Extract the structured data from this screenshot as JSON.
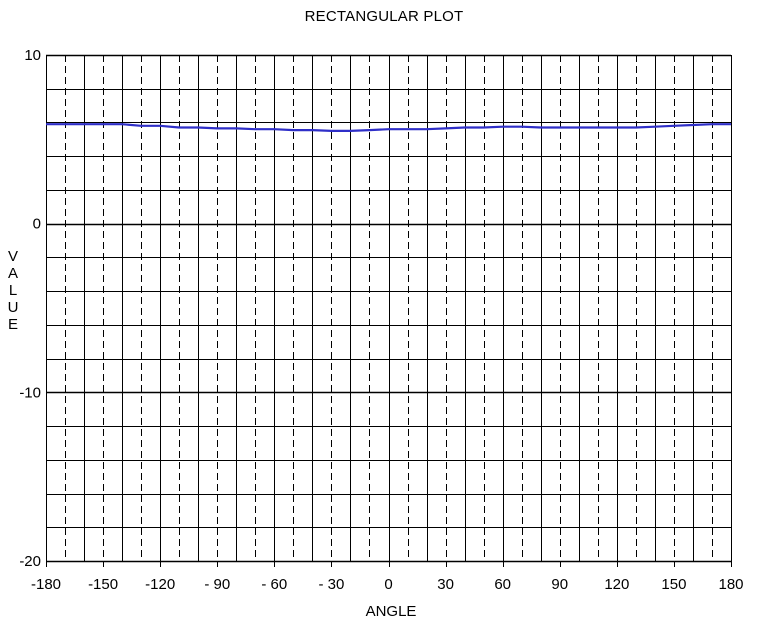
{
  "chart_data": {
    "type": "line",
    "title": "RECTANGULAR PLOT",
    "xlabel": "ANGLE",
    "ylabel": "VALUE",
    "xlim": [
      -180,
      180
    ],
    "ylim": [
      -20,
      10
    ],
    "x_ticks": [
      -180,
      -150,
      -120,
      -90,
      -60,
      -30,
      0,
      30,
      60,
      90,
      120,
      150,
      180
    ],
    "x_tick_labels": [
      "-180",
      "-150",
      "-120",
      "- 90",
      "- 60",
      "- 30",
      "0",
      "30",
      "60",
      "90",
      "120",
      "150",
      "180"
    ],
    "y_ticks": [
      10,
      0,
      -10,
      -20
    ],
    "y_tick_labels": [
      "10",
      "0",
      "-10",
      "-20"
    ],
    "x_minor_step": 10,
    "y_minor_step": 2,
    "grid": true,
    "series": [
      {
        "color": "#2f2fc8",
        "x": [
          -180,
          -170,
          -160,
          -150,
          -140,
          -130,
          -120,
          -110,
          -100,
          -90,
          -80,
          -70,
          -60,
          -50,
          -40,
          -30,
          -20,
          -10,
          0,
          10,
          20,
          30,
          40,
          50,
          60,
          70,
          80,
          90,
          100,
          110,
          120,
          130,
          140,
          150,
          160,
          170,
          180
        ],
        "values": [
          5.9,
          5.9,
          5.9,
          5.9,
          5.9,
          5.8,
          5.8,
          5.7,
          5.7,
          5.65,
          5.65,
          5.6,
          5.6,
          5.55,
          5.55,
          5.5,
          5.5,
          5.55,
          5.6,
          5.6,
          5.6,
          5.65,
          5.7,
          5.7,
          5.75,
          5.75,
          5.7,
          5.7,
          5.7,
          5.7,
          5.7,
          5.7,
          5.75,
          5.8,
          5.85,
          5.9,
          5.9
        ]
      }
    ]
  }
}
